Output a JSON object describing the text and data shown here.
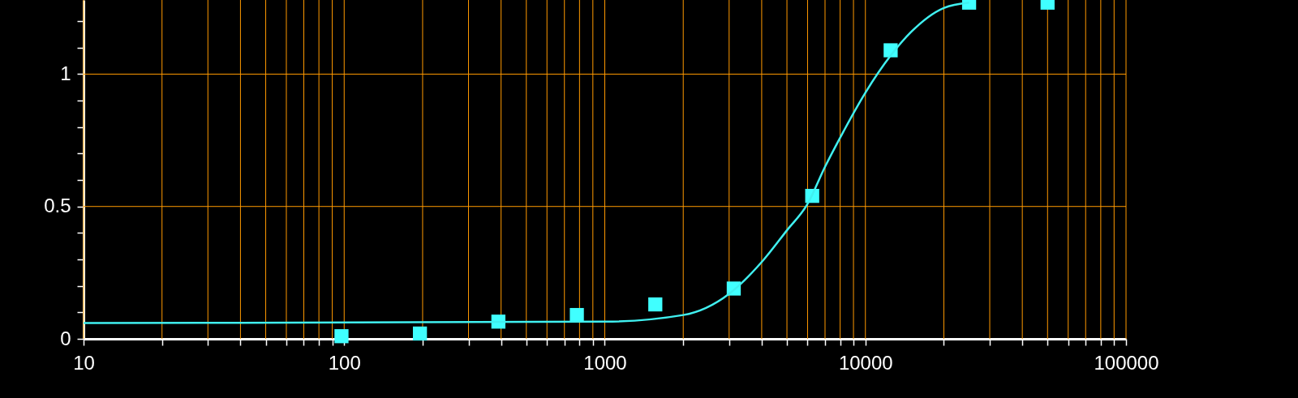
{
  "chart_data": {
    "type": "scatter",
    "xlim": [
      10,
      100000
    ],
    "ylim": [
      0,
      1.28
    ],
    "log": "x",
    "grid": true,
    "xticks": [
      10,
      {
        "value": 20,
        "label": null
      },
      {
        "value": 30,
        "label": null
      },
      {
        "value": 40,
        "label": null
      },
      {
        "value": 50,
        "label": null
      },
      {
        "value": 60,
        "label": null
      },
      {
        "value": 70,
        "label": null
      },
      {
        "value": 80,
        "label": null
      },
      {
        "value": 90,
        "label": null
      },
      100,
      {
        "value": 200,
        "label": null
      },
      {
        "value": 300,
        "label": null
      },
      {
        "value": 400,
        "label": null
      },
      {
        "value": 500,
        "label": null
      },
      {
        "value": 600,
        "label": null
      },
      {
        "value": 700,
        "label": null
      },
      {
        "value": 800,
        "label": null
      },
      {
        "value": 900,
        "label": null
      },
      1000,
      {
        "value": 2000,
        "label": null
      },
      {
        "value": 3000,
        "label": null
      },
      {
        "value": 4000,
        "label": null
      },
      {
        "value": 5000,
        "label": null
      },
      {
        "value": 6000,
        "label": null
      },
      {
        "value": 7000,
        "label": null
      },
      {
        "value": 8000,
        "label": null
      },
      {
        "value": 9000,
        "label": null
      },
      10000,
      {
        "value": 20000,
        "label": null
      },
      {
        "value": 30000,
        "label": null
      },
      {
        "value": 40000,
        "label": null
      },
      {
        "value": 50000,
        "label": null
      },
      {
        "value": 60000,
        "label": null
      },
      {
        "value": 70000,
        "label": null
      },
      {
        "value": 80000,
        "label": null
      },
      {
        "value": 90000,
        "label": null
      },
      100000
    ],
    "yticks": [
      0,
      {
        "value": 0.1,
        "label": null
      },
      {
        "value": 0.2,
        "label": null
      },
      {
        "value": 0.3,
        "label": null
      },
      {
        "value": 0.4,
        "label": null
      },
      0.5,
      {
        "value": 0.6,
        "label": null
      },
      {
        "value": 0.7,
        "label": null
      },
      {
        "value": 0.8,
        "label": null
      },
      {
        "value": 0.9,
        "label": null
      },
      1,
      {
        "value": 1.1,
        "label": null
      },
      {
        "value": 1.2,
        "label": null
      }
    ],
    "series": [
      {
        "marker": "square",
        "color": "#40ffff",
        "x": [
          97.66,
          195.3,
          390.6,
          781.25,
          1562.5,
          3125,
          6250,
          12500,
          25000,
          50000
        ],
        "values": [
          0.01,
          0.02,
          0.065,
          0.09,
          0.13,
          0.19,
          0.54,
          1.09,
          1.27,
          1.27
        ]
      },
      {
        "type": "line",
        "marker": "none",
        "color": "#40f0f0",
        "x": [
          10,
          1000,
          2000,
          3000,
          4000,
          5000,
          6000,
          7000,
          8000,
          10000,
          12500,
          15000,
          20000,
          25000
        ],
        "values": [
          0.06,
          0.065,
          0.09,
          0.17,
          0.29,
          0.41,
          0.51,
          0.65,
          0.76,
          0.93,
          1.07,
          1.16,
          1.25,
          1.27
        ]
      }
    ]
  }
}
